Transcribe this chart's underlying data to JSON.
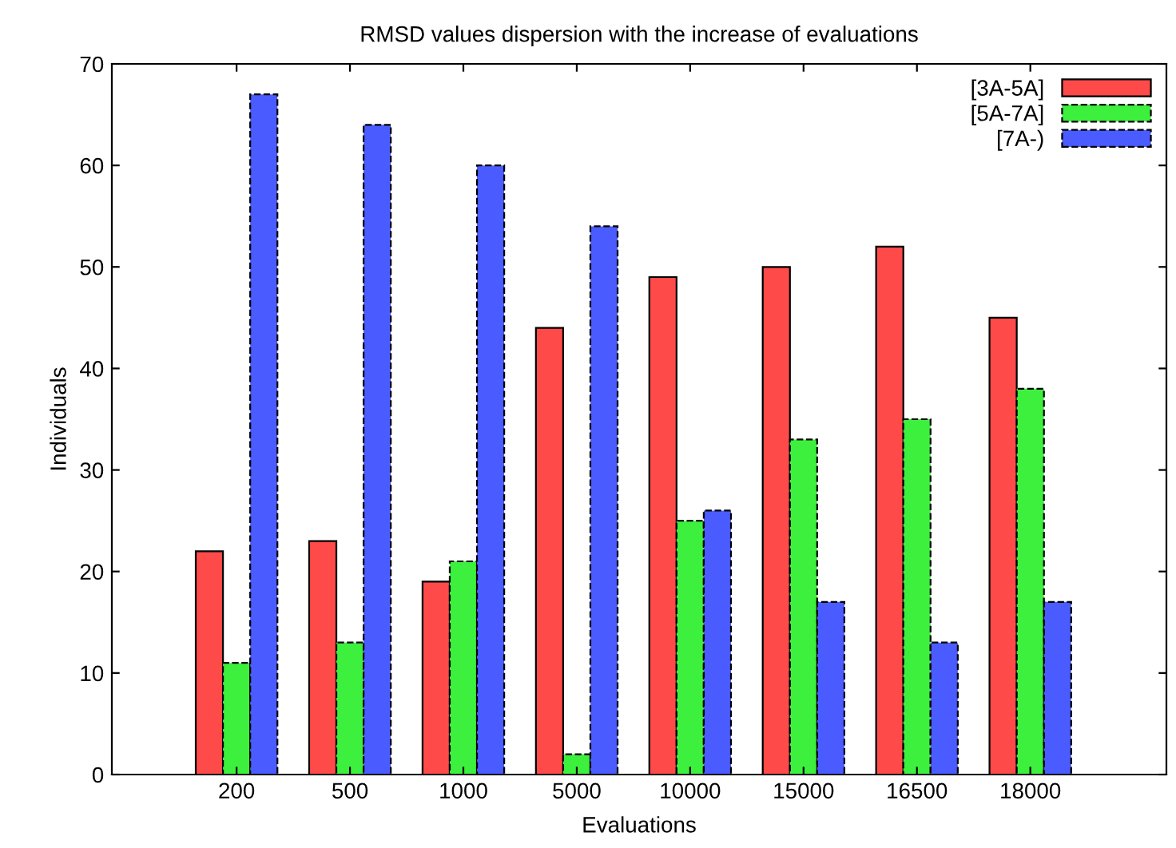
{
  "chart_data": {
    "type": "bar",
    "title": "RMSD values dispersion with the increase of evaluations",
    "xlabel": "Evaluations",
    "ylabel": "Individuals",
    "categories": [
      "200",
      "500",
      "1000",
      "5000",
      "10000",
      "15000",
      "16500",
      "18000"
    ],
    "series": [
      {
        "name": "[3A-5A]",
        "color": "#ff4a4a",
        "line_style": "solid",
        "values": [
          22,
          23,
          19,
          44,
          49,
          50,
          52,
          45
        ]
      },
      {
        "name": "[5A-7A]",
        "color": "#3ef03e",
        "line_style": "dashed",
        "values": [
          11,
          13,
          21,
          2,
          25,
          33,
          35,
          38
        ]
      },
      {
        "name": "[7A-)",
        "color": "#4a5cff",
        "line_style": "dashed",
        "values": [
          67,
          64,
          60,
          54,
          26,
          17,
          13,
          17
        ]
      }
    ],
    "ylim": [
      0,
      70
    ],
    "yticks": [
      0,
      10,
      20,
      30,
      40,
      50,
      60,
      70
    ],
    "grid": false,
    "legend": "top right"
  }
}
